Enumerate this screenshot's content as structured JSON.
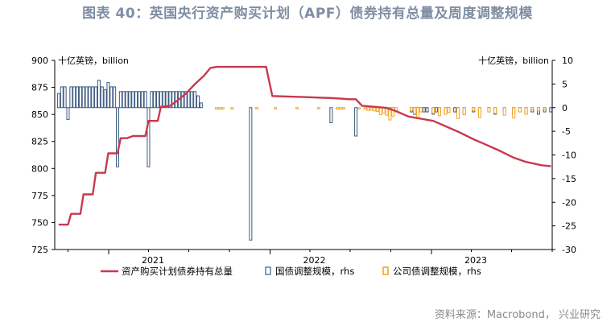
{
  "title": "图表 40：英国央行资产购买计划（APF）债券持有总量及周度调整规模",
  "source": "资料来源：Macrobond， 兴业研究",
  "colors": {
    "line": "#c8394f",
    "gilt_bar_fill": "#ffffff",
    "gilt_bar_stroke": "#3d5a80",
    "corp_bar": "#f5a623",
    "title": "#7f8ea3"
  },
  "chart_data": {
    "type": "bar+line",
    "left_axis": {
      "unit_label": "十亿英镑，billion",
      "ylim": [
        725,
        900
      ],
      "ticks": [
        725,
        750,
        775,
        800,
        825,
        850,
        875,
        900
      ]
    },
    "right_axis": {
      "unit_label": "十亿英镑，billion",
      "ylim": [
        -30,
        10
      ],
      "ticks": [
        -30,
        -25,
        -20,
        -15,
        -10,
        -5,
        0,
        5,
        10
      ]
    },
    "x_axis": {
      "range": [
        "2020-09",
        "2023-10"
      ],
      "year_labels": [
        {
          "label": "2021",
          "date": "2021-01"
        },
        {
          "label": "2022",
          "date": "2022-01"
        },
        {
          "label": "2023",
          "date": "2023-01"
        }
      ]
    },
    "legend": {
      "placement": "bottom",
      "items": [
        "资产购买计划债券持有总量",
        "国债调整规模，rhs",
        "公司债调整规模，rhs"
      ]
    },
    "series": [
      {
        "name": "资产购买计划债券持有总量",
        "axis": "left",
        "kind": "line",
        "points": [
          [
            "2020-09-10",
            748
          ],
          [
            "2020-10-01",
            748
          ],
          [
            "2020-10-08",
            758
          ],
          [
            "2020-10-29",
            758
          ],
          [
            "2020-11-05",
            776
          ],
          [
            "2020-11-26",
            776
          ],
          [
            "2020-12-03",
            796
          ],
          [
            "2020-12-24",
            796
          ],
          [
            "2020-12-31",
            814
          ],
          [
            "2021-01-21",
            814
          ],
          [
            "2021-01-28",
            828
          ],
          [
            "2021-02-11",
            828
          ],
          [
            "2021-02-25",
            830
          ],
          [
            "2021-03-25",
            830
          ],
          [
            "2021-04-01",
            844
          ],
          [
            "2021-04-22",
            844
          ],
          [
            "2021-04-29",
            857
          ],
          [
            "2021-05-20",
            858
          ],
          [
            "2021-06-03",
            862
          ],
          [
            "2021-06-24",
            869
          ],
          [
            "2021-07-15",
            878
          ],
          [
            "2021-08-05",
            886
          ],
          [
            "2021-08-19",
            893
          ],
          [
            "2021-09-02",
            894
          ],
          [
            "2021-12-16",
            894
          ],
          [
            "2021-12-23",
            894
          ],
          [
            "2022-01-06",
            867
          ],
          [
            "2022-03-24",
            866
          ],
          [
            "2022-05-26",
            865
          ],
          [
            "2022-06-30",
            864
          ],
          [
            "2022-07-14",
            864
          ],
          [
            "2022-07-28",
            858
          ],
          [
            "2022-08-25",
            857
          ],
          [
            "2022-09-22",
            856
          ],
          [
            "2022-10-13",
            853
          ],
          [
            "2022-11-10",
            848
          ],
          [
            "2022-12-08",
            846
          ],
          [
            "2023-01-05",
            844
          ],
          [
            "2023-02-02",
            839
          ],
          [
            "2023-03-02",
            834
          ],
          [
            "2023-04-06",
            827
          ],
          [
            "2023-05-04",
            822
          ],
          [
            "2023-06-01",
            817
          ],
          [
            "2023-07-06",
            810
          ],
          [
            "2023-08-03",
            806
          ],
          [
            "2023-09-07",
            803
          ],
          [
            "2023-09-28",
            802
          ]
        ]
      },
      {
        "name": "国债调整规模，rhs",
        "axis": "right",
        "kind": "bar",
        "points": [
          [
            "2020-09-10",
            3
          ],
          [
            "2020-09-17",
            4.4
          ],
          [
            "2020-09-24",
            4.4
          ],
          [
            "2020-10-01",
            -2.5
          ],
          [
            "2020-10-08",
            4.4
          ],
          [
            "2020-10-15",
            4.4
          ],
          [
            "2020-10-22",
            4.4
          ],
          [
            "2020-10-29",
            4.4
          ],
          [
            "2020-11-05",
            4.4
          ],
          [
            "2020-11-12",
            4.4
          ],
          [
            "2020-11-19",
            4.4
          ],
          [
            "2020-11-26",
            4.4
          ],
          [
            "2020-12-03",
            4.4
          ],
          [
            "2020-12-10",
            5.8
          ],
          [
            "2020-12-17",
            4.4
          ],
          [
            "2020-12-24",
            3.8
          ],
          [
            "2020-12-31",
            5.3
          ],
          [
            "2021-01-07",
            4.4
          ],
          [
            "2021-01-14",
            4.4
          ],
          [
            "2021-01-21",
            -12.5
          ],
          [
            "2021-01-28",
            3.4
          ],
          [
            "2021-02-04",
            3.4
          ],
          [
            "2021-02-11",
            3.4
          ],
          [
            "2021-02-18",
            3.4
          ],
          [
            "2021-02-25",
            3.4
          ],
          [
            "2021-03-04",
            3.4
          ],
          [
            "2021-03-11",
            3.4
          ],
          [
            "2021-03-18",
            3.4
          ],
          [
            "2021-03-25",
            3.4
          ],
          [
            "2021-04-01",
            -12.5
          ],
          [
            "2021-04-08",
            3.4
          ],
          [
            "2021-04-15",
            3.4
          ],
          [
            "2021-04-22",
            3.4
          ],
          [
            "2021-04-29",
            3.4
          ],
          [
            "2021-05-06",
            3.4
          ],
          [
            "2021-05-13",
            3.4
          ],
          [
            "2021-05-20",
            3.4
          ],
          [
            "2021-05-27",
            3.4
          ],
          [
            "2021-06-03",
            3.4
          ],
          [
            "2021-06-10",
            3.4
          ],
          [
            "2021-06-17",
            3.4
          ],
          [
            "2021-06-24",
            3.4
          ],
          [
            "2021-07-01",
            3.4
          ],
          [
            "2021-07-08",
            3.4
          ],
          [
            "2021-07-15",
            3.4
          ],
          [
            "2021-07-22",
            2.5
          ],
          [
            "2021-07-29",
            1
          ],
          [
            "2021-11-18",
            -28
          ],
          [
            "2022-05-19",
            -3.2
          ],
          [
            "2022-07-14",
            -6
          ],
          [
            "2022-09-01",
            -0.6
          ],
          [
            "2022-09-08",
            -0.9
          ],
          [
            "2022-09-15",
            -0.9
          ],
          [
            "2022-09-22",
            -0.9
          ],
          [
            "2022-09-29",
            -0.9
          ],
          [
            "2022-10-06",
            -0.9
          ],
          [
            "2022-11-17",
            -0.9
          ],
          [
            "2022-11-24",
            -1.4
          ],
          [
            "2022-12-01",
            -0.9
          ],
          [
            "2022-12-08",
            -0.9
          ],
          [
            "2022-12-15",
            -0.9
          ],
          [
            "2022-12-22",
            -0.9
          ],
          [
            "2023-01-05",
            -1.4
          ],
          [
            "2023-01-12",
            -0.9
          ],
          [
            "2023-01-19",
            -0.9
          ],
          [
            "2023-02-02",
            -1.4
          ],
          [
            "2023-02-09",
            -0.9
          ],
          [
            "2023-02-23",
            -0.9
          ],
          [
            "2023-03-02",
            -1.4
          ],
          [
            "2023-03-16",
            -1.4
          ],
          [
            "2023-04-06",
            -0.9
          ],
          [
            "2023-04-20",
            -1.4
          ],
          [
            "2023-05-11",
            -0.9
          ],
          [
            "2023-05-25",
            -1.4
          ],
          [
            "2023-06-15",
            -0.9
          ],
          [
            "2023-07-06",
            -1.4
          ],
          [
            "2023-07-20",
            -0.9
          ],
          [
            "2023-08-03",
            -1.4
          ],
          [
            "2023-08-17",
            -0.9
          ],
          [
            "2023-08-31",
            -1.4
          ],
          [
            "2023-09-14",
            -0.9
          ],
          [
            "2023-09-28",
            -0.9
          ]
        ]
      },
      {
        "name": "公司债调整规模，rhs",
        "axis": "right",
        "kind": "bar",
        "points": [
          [
            "2021-09-02",
            -0.3
          ],
          [
            "2021-09-09",
            -0.3
          ],
          [
            "2021-09-16",
            -0.3
          ],
          [
            "2021-10-07",
            -0.3
          ],
          [
            "2021-12-02",
            -0.2
          ],
          [
            "2022-01-13",
            -0.2
          ],
          [
            "2022-03-03",
            -0.2
          ],
          [
            "2022-04-21",
            -0.2
          ],
          [
            "2022-06-02",
            -0.3
          ],
          [
            "2022-06-09",
            -0.3
          ],
          [
            "2022-06-16",
            -0.3
          ],
          [
            "2022-07-21",
            -0.3
          ],
          [
            "2022-08-04",
            -0.3
          ],
          [
            "2022-08-11",
            -0.6
          ],
          [
            "2022-08-18",
            -0.5
          ],
          [
            "2022-08-25",
            -0.7
          ],
          [
            "2022-09-01",
            -0.8
          ],
          [
            "2022-09-08",
            -1.5
          ],
          [
            "2022-09-15",
            -1.2
          ],
          [
            "2022-09-22",
            -1.6
          ],
          [
            "2022-09-29",
            -2.6
          ],
          [
            "2022-10-06",
            -1.8
          ],
          [
            "2022-10-13",
            -0.9
          ],
          [
            "2022-11-17",
            -0.6
          ],
          [
            "2022-11-24",
            -1.3
          ],
          [
            "2022-12-01",
            -2.1
          ],
          [
            "2022-12-08",
            -0.9
          ],
          [
            "2023-01-05",
            -1.1
          ],
          [
            "2023-01-19",
            -1.7
          ],
          [
            "2023-02-02",
            -1.4
          ],
          [
            "2023-02-09",
            -1
          ],
          [
            "2023-03-02",
            -2.3
          ],
          [
            "2023-03-16",
            -1.5
          ],
          [
            "2023-04-06",
            -0.6
          ],
          [
            "2023-04-20",
            -2.1
          ],
          [
            "2023-05-11",
            -0.9
          ],
          [
            "2023-05-25",
            -1.2
          ],
          [
            "2023-06-15",
            -1.6
          ],
          [
            "2023-07-06",
            -2.2
          ],
          [
            "2023-07-20",
            -0.9
          ],
          [
            "2023-08-03",
            -1.4
          ],
          [
            "2023-08-17",
            -0.4
          ],
          [
            "2023-08-31",
            -0.6
          ],
          [
            "2023-09-14",
            -0.3
          ]
        ]
      }
    ]
  }
}
